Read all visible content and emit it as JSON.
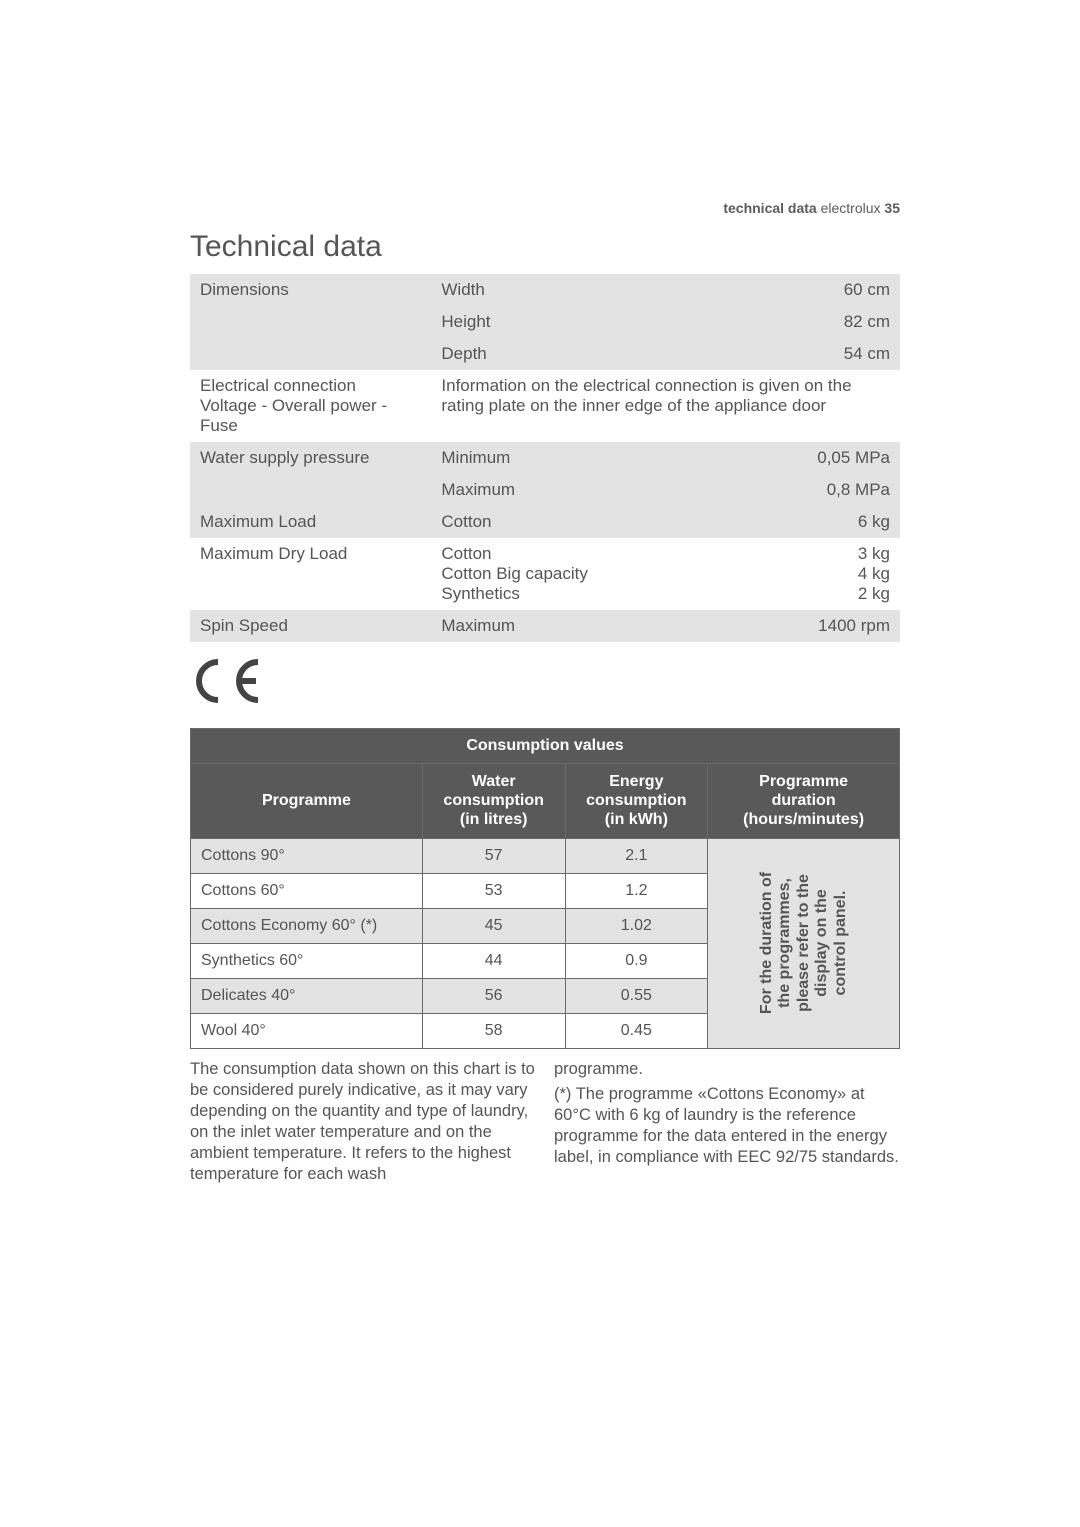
{
  "header": {
    "section": "technical data",
    "brand": "electrolux",
    "page": "35"
  },
  "title": "Technical data",
  "specs": [
    {
      "label": "Dimensions",
      "mids": [
        "Width",
        "Height",
        "Depth"
      ],
      "vals": [
        "60 cm",
        "82 cm",
        "54 cm"
      ],
      "shade": true,
      "multi": true
    },
    {
      "label": "Electrical connection\nVoltage - Overall power -\nFuse",
      "mid": "Information on the electrical connection is given on the rating plate on the inner edge of the appliance door",
      "val": "",
      "shade": false,
      "span": true
    },
    {
      "label": "Water supply pressure",
      "mids": [
        "Minimum",
        "Maximum"
      ],
      "vals": [
        "0,05 MPa",
        "0,8 MPa"
      ],
      "shade": true,
      "multi": true
    },
    {
      "label": "Maximum Load",
      "mid": "Cotton",
      "val": "6 kg",
      "shade": true
    },
    {
      "label": "Maximum Dry Load",
      "mid": "Cotton\nCotton Big capacity\nSynthetics",
      "val": "3 kg\n4 kg\n2 kg",
      "shade": false
    },
    {
      "label": "Spin Speed",
      "mid": "Maximum",
      "val": "1400 rpm",
      "shade": true
    }
  ],
  "cons": {
    "title": "Consumption values",
    "headers": [
      "Programme",
      "Water\nconsumption\n(in litres)",
      "Energy\nconsumption\n(in kWh)",
      "Programme\nduration\n(hours/minutes)"
    ],
    "rows": [
      {
        "p": "Cottons 90°",
        "w": "57",
        "e": "2.1",
        "shade": true
      },
      {
        "p": "Cottons 60°",
        "w": "53",
        "e": "1.2",
        "shade": false
      },
      {
        "p": "Cottons Economy 60° (*)",
        "w": "45",
        "e": "1.02",
        "shade": true
      },
      {
        "p": "Synthetics 60°",
        "w": "44",
        "e": "0.9",
        "shade": false
      },
      {
        "p": "Delicates 40°",
        "w": "56",
        "e": "0.55",
        "shade": true
      },
      {
        "p": "Wool 40°",
        "w": "58",
        "e": "0.45",
        "shade": false
      }
    ],
    "duration_note": "For the duration of\nthe programmes,\nplease refer to the\ndisplay on the\ncontrol panel."
  },
  "notes": {
    "left": "The consumption data shown on this chart is to be considered purely indicative, as it may vary depending on the quantity and type of laundry, on the inlet water temperature and on the ambient temperature. It refers to the highest temperature for each wash",
    "right_lead": "programme.",
    "right": "(*) The programme «Cottons Economy» at 60°C with 6 kg of laundry is the reference programme for the data entered in the energy label, in compliance with EEC 92/75 standards."
  },
  "ce": "CE",
  "colors": {
    "shade": "#e3e3e3",
    "headbg": "#595959",
    "text": "#555555",
    "border": "#6a6a6a",
    "page_bg": "#ffffff"
  }
}
